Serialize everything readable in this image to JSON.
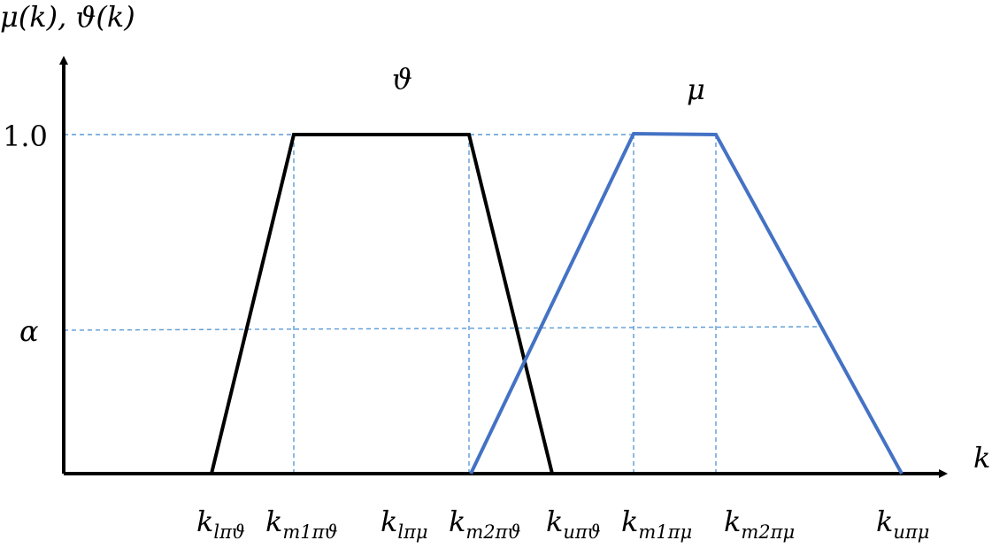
{
  "diagram": {
    "y_axis_label": "μ(k), ϑ(k)",
    "x_axis_label": "k",
    "y_ticks": {
      "top": "1.0",
      "mid": "α"
    },
    "curves": {
      "theta": {
        "label": "ϑ",
        "color": "#000000"
      },
      "mu": {
        "label": "μ",
        "color": "#4472C4"
      }
    },
    "guide_color": "#5B9BD5",
    "x_ticks": [
      {
        "base": "k",
        "sub": "lπϑ"
      },
      {
        "base": "k",
        "sub": "m1πϑ"
      },
      {
        "base": "k",
        "sub": "lπμ"
      },
      {
        "base": "k",
        "sub": "m2πϑ"
      },
      {
        "base": "k",
        "sub": "uπϑ"
      },
      {
        "base": "k",
        "sub": "m1πμ"
      },
      {
        "base": "k",
        "sub": "m2πμ"
      },
      {
        "base": "k",
        "sub": "uπμ"
      }
    ]
  }
}
